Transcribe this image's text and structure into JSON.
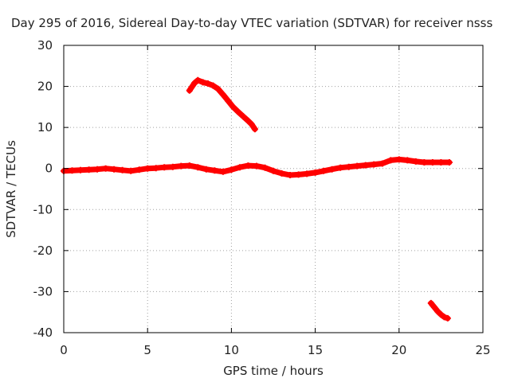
{
  "chart_data": {
    "type": "scatter",
    "title": "Day 295 of 2016, Sidereal Day-to-day VTEC variation (SDTVAR) for receiver nsss",
    "xlabel": "GPS time / hours",
    "ylabel": "SDTVAR / TECUs",
    "xlim": [
      0,
      25
    ],
    "ylim": [
      -40,
      30
    ],
    "xticks": [
      0,
      5,
      10,
      15,
      20,
      25
    ],
    "yticks": [
      -40,
      -30,
      -20,
      -10,
      0,
      10,
      20,
      30
    ],
    "grid": true,
    "color": "#ff0000",
    "series": [
      {
        "name": "main-band",
        "points": [
          [
            0.0,
            -0.6
          ],
          [
            0.5,
            -0.5
          ],
          [
            1.0,
            -0.4
          ],
          [
            1.5,
            -0.3
          ],
          [
            2.0,
            -0.2
          ],
          [
            2.5,
            0.0
          ],
          [
            3.0,
            -0.2
          ],
          [
            3.5,
            -0.4
          ],
          [
            4.0,
            -0.6
          ],
          [
            4.5,
            -0.3
          ],
          [
            5.0,
            0.0
          ],
          [
            5.5,
            0.1
          ],
          [
            6.0,
            0.3
          ],
          [
            6.5,
            0.4
          ],
          [
            7.0,
            0.6
          ],
          [
            7.5,
            0.7
          ],
          [
            8.0,
            0.3
          ],
          [
            8.5,
            -0.2
          ],
          [
            9.0,
            -0.5
          ],
          [
            9.5,
            -0.8
          ],
          [
            10.0,
            -0.3
          ],
          [
            10.5,
            0.3
          ],
          [
            11.0,
            0.7
          ],
          [
            11.5,
            0.6
          ],
          [
            12.0,
            0.2
          ],
          [
            12.5,
            -0.6
          ],
          [
            13.0,
            -1.2
          ],
          [
            13.5,
            -1.6
          ],
          [
            14.0,
            -1.5
          ],
          [
            14.5,
            -1.3
          ],
          [
            15.0,
            -1.0
          ],
          [
            15.5,
            -0.6
          ],
          [
            16.0,
            -0.2
          ],
          [
            16.5,
            0.2
          ],
          [
            17.0,
            0.4
          ],
          [
            17.5,
            0.6
          ],
          [
            18.0,
            0.8
          ],
          [
            18.5,
            1.0
          ],
          [
            19.0,
            1.2
          ],
          [
            19.5,
            2.0
          ],
          [
            20.0,
            2.2
          ],
          [
            20.5,
            2.0
          ],
          [
            21.0,
            1.7
          ],
          [
            21.5,
            1.5
          ],
          [
            22.0,
            1.5
          ],
          [
            22.5,
            1.5
          ],
          [
            23.0,
            1.5
          ]
        ]
      },
      {
        "name": "upper-arc",
        "points": [
          [
            7.5,
            19.0
          ],
          [
            7.8,
            20.8
          ],
          [
            8.0,
            21.5
          ],
          [
            8.3,
            21.0
          ],
          [
            8.6,
            20.7
          ],
          [
            8.9,
            20.2
          ],
          [
            9.2,
            19.4
          ],
          [
            9.5,
            18.0
          ],
          [
            9.8,
            16.5
          ],
          [
            10.1,
            15.0
          ],
          [
            10.4,
            13.8
          ],
          [
            10.7,
            12.7
          ],
          [
            11.0,
            11.6
          ],
          [
            11.2,
            10.8
          ],
          [
            11.4,
            9.6
          ]
        ]
      },
      {
        "name": "lower-segment",
        "points": [
          [
            21.9,
            -32.8
          ],
          [
            22.1,
            -33.8
          ],
          [
            22.3,
            -34.8
          ],
          [
            22.5,
            -35.6
          ],
          [
            22.7,
            -36.2
          ],
          [
            22.9,
            -36.5
          ]
        ]
      }
    ]
  }
}
